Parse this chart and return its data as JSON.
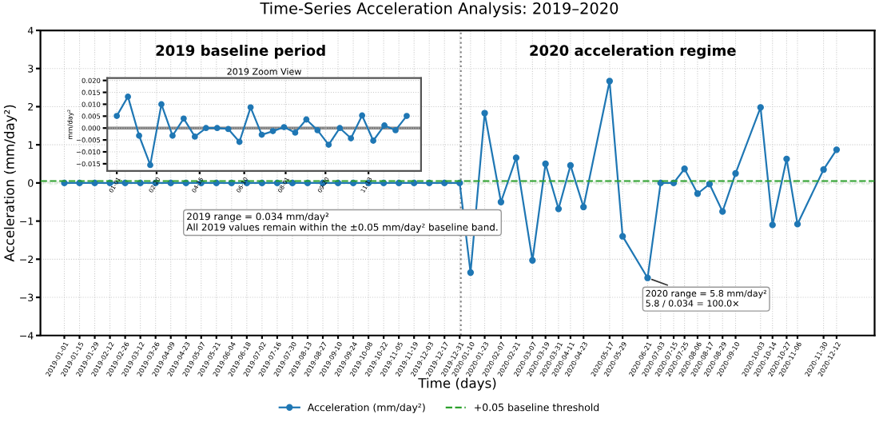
{
  "chart_data": [
    {
      "type": "line",
      "title": "Time-Series Acceleration Analysis: 2019–2020",
      "xlabel": "Time (days)",
      "ylabel": "Acceleration (mm/day²)",
      "series": [
        {
          "name": "Acceleration (mm/day²)",
          "color": "#1f77b4",
          "x": [
            "2019-01-01",
            "2019-01-15",
            "2019-01-29",
            "2019-02-12",
            "2019-02-26",
            "2019-03-12",
            "2019-03-26",
            "2019-04-09",
            "2019-04-23",
            "2019-05-07",
            "2019-05-21",
            "2019-06-04",
            "2019-06-18",
            "2019-07-02",
            "2019-07-16",
            "2019-07-30",
            "2019-08-13",
            "2019-08-27",
            "2019-09-10",
            "2019-09-24",
            "2019-10-08",
            "2019-10-22",
            "2019-11-05",
            "2019-11-19",
            "2019-12-03",
            "2019-12-17",
            "2019-12-31",
            "2020-01-10",
            "2020-01-23",
            "2020-02-07",
            "2020-02-21",
            "2020-03-07",
            "2020-03-19",
            "2020-03-31",
            "2020-04-11",
            "2020-04-23",
            "2020-05-17",
            "2020-05-29",
            "2020-06-21",
            "2020-07-03",
            "2020-07-15",
            "2020-07-25",
            "2020-08-06",
            "2020-08-17",
            "2020-08-29",
            "2020-09-10",
            "2020-10-03",
            "2020-10-14",
            "2020-10-27",
            "2020-11-06",
            "2020-11-30",
            "2020-12-12"
          ],
          "values": [
            0,
            0,
            0,
            0,
            0,
            0,
            0,
            0,
            0,
            0,
            0,
            0,
            0,
            0,
            0,
            0,
            0,
            0,
            0,
            0,
            0,
            0,
            0,
            0,
            0,
            0,
            0,
            -2.35,
            1.83,
            -0.5,
            0.66,
            -2.03,
            0.5,
            -0.68,
            0.46,
            -0.63,
            2.67,
            -1.4,
            -2.49,
            0,
            0,
            0.37,
            -0.28,
            -0.03,
            -0.75,
            0.25,
            1.98,
            -1.1,
            0.63,
            -1.08,
            0.35,
            0.87
          ]
        }
      ],
      "marker": "circle",
      "line_style": "solid",
      "grid": true,
      "legend": "bottom",
      "xlim": [
        "2018-12-10",
        "2021-01-16"
      ],
      "ylim": [
        -4,
        4
      ],
      "yticks": [
        -4,
        -3,
        -2,
        -1,
        0,
        1,
        2,
        3,
        4
      ],
      "xticks": [
        "2019-01-01",
        "2019-01-15",
        "2019-01-29",
        "2019-02-12",
        "2019-02-26",
        "2019-03-12",
        "2019-03-26",
        "2019-04-09",
        "2019-04-23",
        "2019-05-07",
        "2019-05-21",
        "2019-06-04",
        "2019-06-18",
        "2019-07-02",
        "2019-07-16",
        "2019-07-30",
        "2019-08-13",
        "2019-08-27",
        "2019-09-10",
        "2019-09-24",
        "2019-10-08",
        "2019-10-22",
        "2019-11-05",
        "2019-11-19",
        "2019-12-03",
        "2019-12-17",
        "2019-12-31",
        "2020-01-10",
        "2020-01-23",
        "2020-02-07",
        "2020-02-21",
        "2020-03-07",
        "2020-03-19",
        "2020-03-31",
        "2020-04-11",
        "2020-04-23",
        "2020-05-17",
        "2020-05-29",
        "2020-06-21",
        "2020-07-03",
        "2020-07-15",
        "2020-07-25",
        "2020-08-06",
        "2020-08-17",
        "2020-08-29",
        "2020-09-10",
        "2020-10-03",
        "2020-10-14",
        "2020-10-27",
        "2020-11-06",
        "2020-11-30",
        "2020-12-12"
      ],
      "ref_lines": [
        {
          "axis": "y",
          "value": 0.05,
          "label": "+0.05 baseline threshold",
          "color": "#2ca02c",
          "line_style": "dashed"
        },
        {
          "axis": "x",
          "value": "2020-01-01",
          "color": "#808080",
          "line_style": "dotted"
        }
      ],
      "bands": [
        {
          "axis": "y",
          "from": -0.05,
          "to": 0.05,
          "color": "#2ca02c"
        }
      ],
      "annotations": [
        "2019 baseline period",
        "2020 acceleration regime",
        "2019 range = 0.034 mm/day²\nAll 2019 values remain within the ±0.05 mm/day² baseline band.",
        {
          "text": "2020 range = 5.8 mm/day²\n5.8 / 0.034 = 100.0×",
          "x": "2020-06-21",
          "y": -2.49
        }
      ]
    },
    {
      "type": "line",
      "title": "2019 Zoom View",
      "ylabel": "mm/day²",
      "series": [
        {
          "color": "#1f77b4",
          "x": [
            "2019-01-01",
            "2019-01-15",
            "2019-01-29",
            "2019-02-12",
            "2019-02-26",
            "2019-03-12",
            "2019-03-26",
            "2019-04-09",
            "2019-04-23",
            "2019-05-07",
            "2019-05-21",
            "2019-06-04",
            "2019-06-18",
            "2019-07-02",
            "2019-07-16",
            "2019-07-30",
            "2019-08-13",
            "2019-08-27",
            "2019-09-10",
            "2019-09-24",
            "2019-10-08",
            "2019-10-22",
            "2019-11-05",
            "2019-11-19",
            "2019-12-03",
            "2019-12-17",
            "2019-12-31"
          ],
          "values": [
            0.0051,
            0.0132,
            -0.0032,
            -0.0155,
            0.01,
            -0.0032,
            0.004,
            -0.0036,
            0,
            0,
            -0.0004,
            -0.0058,
            0.0087,
            -0.0028,
            -0.0013,
            0.0004,
            -0.0019,
            0.0036,
            -0.0009,
            -0.007,
            0,
            -0.0043,
            0.0053,
            -0.0053,
            0.0011,
            -0.0009,
            0.0051
          ]
        }
      ],
      "marker": "circle",
      "line_style": "solid",
      "grid": true,
      "xlim": [
        "2018-12-20",
        "2020-01-18"
      ],
      "ylim": [
        -0.018,
        0.021
      ],
      "yticks": [
        {
          "value": -0.015,
          "label": "−0.015"
        },
        {
          "value": -0.01,
          "label": "−0.010"
        },
        {
          "value": -0.005,
          "label": "−0.005"
        },
        {
          "value": 0,
          "label": "0.000"
        },
        {
          "value": 0.005,
          "label": "0.005"
        },
        {
          "value": 0.01,
          "label": "0.010"
        },
        {
          "value": 0.015,
          "label": "0.015"
        },
        {
          "value": 0.02,
          "label": "0.020"
        }
      ],
      "xticks": [
        {
          "value": "2019-01-01",
          "label": "01-01"
        },
        {
          "value": "2019-02-20",
          "label": "02-20"
        },
        {
          "value": "2019-04-15",
          "label": "04-15"
        },
        {
          "value": "2019-06-10",
          "label": "06-10"
        },
        {
          "value": "2019-08-01",
          "label": "08-01"
        },
        {
          "value": "2019-09-20",
          "label": "09-20"
        },
        {
          "value": "2019-11-13",
          "label": "11-13"
        }
      ],
      "ref_lines": [
        {
          "axis": "y",
          "value": 0,
          "color": "#808080",
          "line_style": "solid"
        }
      ]
    }
  ]
}
